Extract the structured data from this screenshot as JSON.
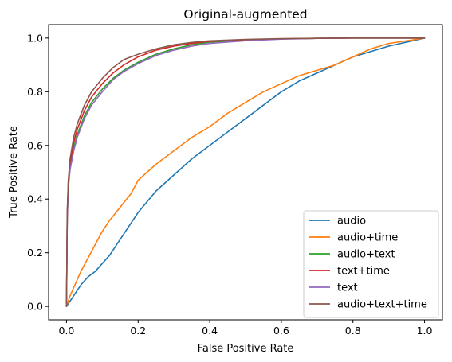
{
  "chart_data": {
    "type": "line",
    "title": "Original-augmented",
    "xlabel": "False Positive Rate",
    "ylabel": "True Positive Rate",
    "xlim": [
      -0.05,
      1.05
    ],
    "ylim": [
      -0.05,
      1.05
    ],
    "xticks": [
      "0.0",
      "0.2",
      "0.4",
      "0.6",
      "0.8",
      "1.0"
    ],
    "yticks": [
      "0.0",
      "0.2",
      "0.4",
      "0.6",
      "0.8",
      "1.0"
    ],
    "grid": false,
    "legend_position": "lower-right",
    "series": [
      {
        "name": "audio",
        "color": "#1f77b4",
        "x": [
          0.0,
          0.01,
          0.02,
          0.04,
          0.06,
          0.08,
          0.1,
          0.12,
          0.15,
          0.18,
          0.2,
          0.25,
          0.3,
          0.35,
          0.4,
          0.45,
          0.5,
          0.55,
          0.6,
          0.65,
          0.7,
          0.75,
          0.8,
          0.85,
          0.9,
          0.95,
          1.0
        ],
        "y": [
          0.0,
          0.02,
          0.04,
          0.08,
          0.11,
          0.13,
          0.16,
          0.19,
          0.25,
          0.31,
          0.35,
          0.43,
          0.49,
          0.55,
          0.6,
          0.65,
          0.7,
          0.75,
          0.8,
          0.84,
          0.87,
          0.9,
          0.93,
          0.95,
          0.97,
          0.985,
          1.0
        ]
      },
      {
        "name": "audio+time",
        "color": "#ff7f0e",
        "x": [
          0.0,
          0.01,
          0.02,
          0.04,
          0.06,
          0.08,
          0.1,
          0.12,
          0.15,
          0.18,
          0.2,
          0.25,
          0.3,
          0.35,
          0.4,
          0.45,
          0.5,
          0.55,
          0.6,
          0.65,
          0.7,
          0.75,
          0.8,
          0.85,
          0.9,
          0.95,
          1.0
        ],
        "y": [
          0.0,
          0.04,
          0.07,
          0.13,
          0.18,
          0.23,
          0.28,
          0.32,
          0.37,
          0.42,
          0.47,
          0.53,
          0.58,
          0.63,
          0.67,
          0.72,
          0.76,
          0.8,
          0.83,
          0.86,
          0.88,
          0.9,
          0.93,
          0.96,
          0.98,
          0.99,
          1.0
        ]
      },
      {
        "name": "audio+text",
        "color": "#2ca02c",
        "x": [
          0.0,
          0.002,
          0.005,
          0.01,
          0.02,
          0.03,
          0.05,
          0.07,
          0.1,
          0.13,
          0.16,
          0.2,
          0.25,
          0.3,
          0.35,
          0.4,
          0.5,
          0.6,
          0.7,
          0.8,
          0.9,
          1.0
        ],
        "y": [
          0.0,
          0.33,
          0.45,
          0.52,
          0.59,
          0.64,
          0.71,
          0.76,
          0.81,
          0.85,
          0.88,
          0.91,
          0.94,
          0.96,
          0.975,
          0.985,
          0.993,
          0.997,
          0.999,
          1.0,
          1.0,
          1.0
        ]
      },
      {
        "name": "text+time",
        "color": "#d62728",
        "x": [
          0.0,
          0.002,
          0.005,
          0.01,
          0.02,
          0.03,
          0.05,
          0.07,
          0.1,
          0.13,
          0.16,
          0.2,
          0.25,
          0.3,
          0.35,
          0.4,
          0.5,
          0.6,
          0.7,
          0.8,
          0.9,
          1.0
        ],
        "y": [
          0.0,
          0.34,
          0.46,
          0.53,
          0.61,
          0.66,
          0.73,
          0.78,
          0.83,
          0.87,
          0.9,
          0.93,
          0.955,
          0.97,
          0.98,
          0.988,
          0.994,
          0.997,
          0.999,
          1.0,
          1.0,
          1.0
        ]
      },
      {
        "name": "text",
        "color": "#9467bd",
        "x": [
          0.0,
          0.002,
          0.005,
          0.01,
          0.02,
          0.03,
          0.05,
          0.07,
          0.1,
          0.13,
          0.16,
          0.2,
          0.25,
          0.3,
          0.35,
          0.4,
          0.5,
          0.6,
          0.7,
          0.8,
          0.9,
          1.0
        ],
        "y": [
          0.0,
          0.32,
          0.44,
          0.51,
          0.58,
          0.63,
          0.7,
          0.75,
          0.8,
          0.845,
          0.875,
          0.905,
          0.935,
          0.955,
          0.97,
          0.98,
          0.99,
          0.996,
          0.999,
          1.0,
          1.0,
          1.0
        ]
      },
      {
        "name": "audio+text+time",
        "color": "#8c564b",
        "x": [
          0.0,
          0.002,
          0.005,
          0.01,
          0.02,
          0.03,
          0.05,
          0.07,
          0.1,
          0.13,
          0.16,
          0.2,
          0.25,
          0.3,
          0.35,
          0.4,
          0.5,
          0.6,
          0.7,
          0.8,
          0.9,
          1.0
        ],
        "y": [
          0.0,
          0.35,
          0.47,
          0.55,
          0.63,
          0.68,
          0.75,
          0.8,
          0.85,
          0.89,
          0.92,
          0.94,
          0.96,
          0.975,
          0.984,
          0.99,
          0.995,
          0.998,
          0.999,
          1.0,
          1.0,
          1.0
        ]
      }
    ]
  }
}
